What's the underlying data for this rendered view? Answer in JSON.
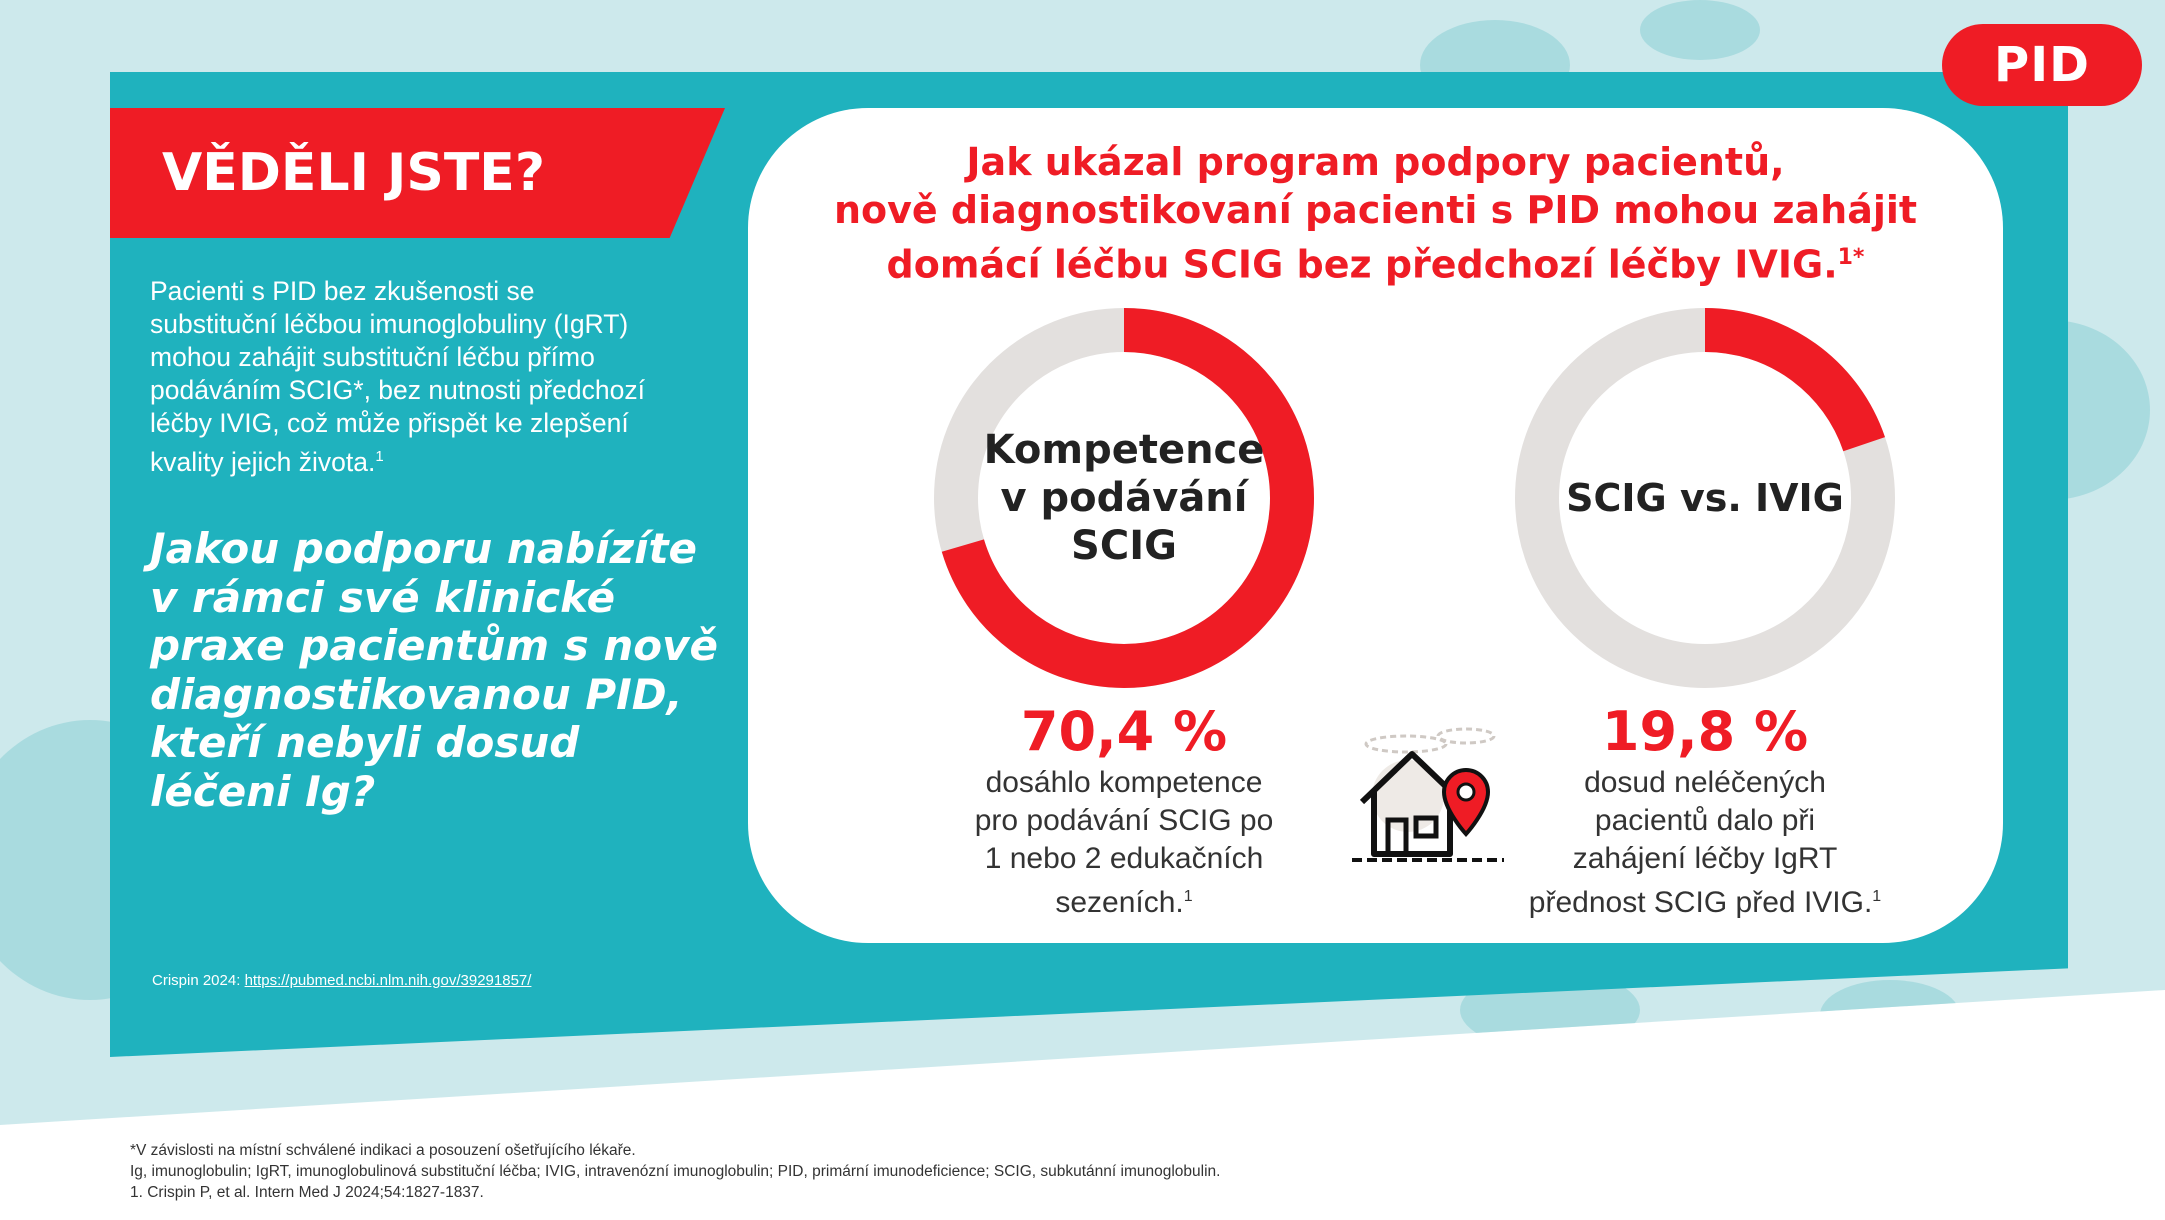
{
  "badge": {
    "label": "PID"
  },
  "ribbon": {
    "title": "VĚDĚLI JSTE?"
  },
  "intro": {
    "lines": [
      "Pacienti s PID bez zkušenosti se",
      "substituční léčbou imunoglobuliny (IgRT)",
      "mohou zahájit substituční léčbu přímo",
      "podáváním SCIG*, bez nutnosti předchozí",
      "léčby IVIG, což může přispět ke zlepšení",
      "kvality jejich života."
    ],
    "ref": "1"
  },
  "question": {
    "lines": [
      "Jakou podporu nabízíte",
      "v rámci své klinické",
      "praxe pacientům s nově",
      "diagnostikovanou PID,",
      "kteří nebyli dosud",
      "léčeni Ig?"
    ]
  },
  "citation": {
    "prefix": "Crispin 2024: ",
    "link_text": "https://pubmed.ncbi.nlm.nih.gov/39291857/"
  },
  "card": {
    "title_lines": [
      "Jak ukázal program podpory pacientů,",
      "nově diagnostikovaní pacienti s PID mohou zahájit",
      "domácí léčbu SCIG bez předchozí léčby IVIG."
    ],
    "title_ref": "1*",
    "stats": [
      {
        "donut_label_lines": [
          "Kompetence",
          "v podávání",
          "SCIG"
        ],
        "percent": 70.4,
        "value": "70,4 %",
        "desc_lines": [
          "dosáhlo kompetence",
          "pro podávání SCIG po",
          "1 nebo 2 edukačních",
          "sezeních."
        ],
        "ref": "1"
      },
      {
        "donut_label_lines": [
          "SCIG vs. IVIG"
        ],
        "percent": 19.8,
        "value": "19,8 %",
        "desc_lines": [
          "dosud neléčených",
          "pacientů dalo při",
          "zahájení léčby IgRT",
          "přednost SCIG před IVIG."
        ],
        "ref": "1"
      }
    ],
    "house_icon": "house-with-location-pin-icon"
  },
  "footnotes": [
    "*V závislosti na místní schválené indikaci a posouzení ošetřujícího lékaře.",
    "Ig, imunoglobulin; IgRT, imunoglobulinová substituční léčba; IVIG, intravenózní imunoglobulin; PID, primární imunodeficience; SCIG, subkutánní imunoglobulin.",
    "1. Crispin P, et al. Intern Med J 2024;54:1827-1837."
  ],
  "colors": {
    "brand_red": "#ef1c25",
    "teal": "#1fb2be",
    "light_cyan": "#cde9ec",
    "donut_track": "#e3e0de"
  }
}
